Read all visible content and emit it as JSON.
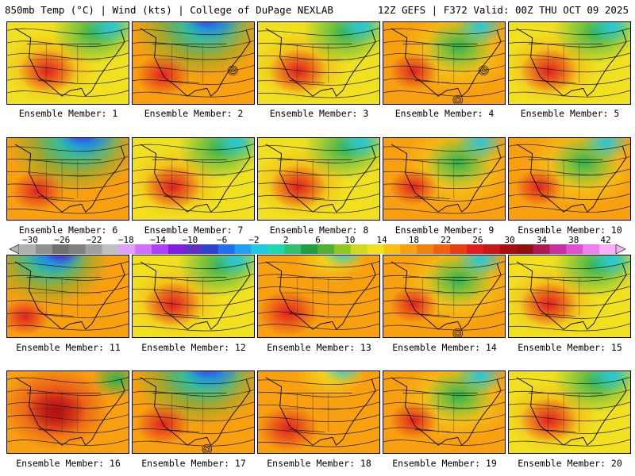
{
  "header": {
    "title": "850mb Temp (°C) | Wind (kts) | College of DuPage NEXLAB",
    "run_info": "12Z GEFS | F372 Valid: 00Z THU OCT 09 2025"
  },
  "panels": [
    {
      "label": "Ensemble Member: 1",
      "scheme": "warmwest",
      "lows": []
    },
    {
      "label": "Ensemble Member: 2",
      "scheme": "coldnorth",
      "lows": [
        "se"
      ]
    },
    {
      "label": "Ensemble Member: 3",
      "scheme": "warmwest",
      "lows": []
    },
    {
      "label": "Ensemble Member: 4",
      "scheme": "mild",
      "lows": [
        "se",
        "gulf"
      ]
    },
    {
      "label": "Ensemble Member: 5",
      "scheme": "warmwest",
      "lows": []
    },
    {
      "label": "Ensemble Member: 6",
      "scheme": "coldnorth",
      "lows": []
    },
    {
      "label": "Ensemble Member: 7",
      "scheme": "warmwest",
      "lows": []
    },
    {
      "label": "Ensemble Member: 8",
      "scheme": "warmwest",
      "lows": []
    },
    {
      "label": "Ensemble Member: 9",
      "scheme": "mild",
      "lows": []
    },
    {
      "label": "Ensemble Member: 10",
      "scheme": "mild",
      "lows": []
    },
    {
      "label": "Ensemble Member: 11",
      "scheme": "coldnw",
      "lows": []
    },
    {
      "label": "Ensemble Member: 12",
      "scheme": "warmwest",
      "lows": []
    },
    {
      "label": "Ensemble Member: 13",
      "scheme": "warm",
      "lows": []
    },
    {
      "label": "Ensemble Member: 14",
      "scheme": "mild",
      "lows": [
        "gulf"
      ]
    },
    {
      "label": "Ensemble Member: 15",
      "scheme": "warmwest",
      "lows": []
    },
    {
      "label": "Ensemble Member: 16",
      "scheme": "hot",
      "lows": []
    },
    {
      "label": "Ensemble Member: 17",
      "scheme": "coldnorth",
      "lows": [
        "gulf"
      ]
    },
    {
      "label": "Ensemble Member: 18",
      "scheme": "warm",
      "lows": []
    },
    {
      "label": "Ensemble Member: 19",
      "scheme": "mild",
      "lows": []
    },
    {
      "label": "Ensemble Member: 20",
      "scheme": "warmwest",
      "lows": []
    }
  ],
  "colorbar": {
    "ticks": [
      "−30",
      "−26",
      "−22",
      "−18",
      "−14",
      "−10",
      "−6",
      "−2",
      "2",
      "6",
      "10",
      "14",
      "18",
      "22",
      "26",
      "30",
      "34",
      "38",
      "42"
    ],
    "colors": [
      "#b0b0b0",
      "#909090",
      "#707070",
      "#808080",
      "#a0a0a0",
      "#c0c0c0",
      "#e0a0ff",
      "#d070ff",
      "#b040ff",
      "#8020e0",
      "#6030c0",
      "#3040d0",
      "#2070f0",
      "#20a0f0",
      "#20c8e0",
      "#20d8b0",
      "#30c070",
      "#20a040",
      "#50b030",
      "#90c820",
      "#d0d820",
      "#f0e020",
      "#f8c010",
      "#f8a010",
      "#f08010",
      "#f06010",
      "#e84010",
      "#e02020",
      "#c81818",
      "#a81010",
      "#901010",
      "#b01850",
      "#c830a0",
      "#e050d0",
      "#f080f0",
      "#f8b0f8"
    ]
  },
  "colors": {
    "cold_purple": "#6020d0",
    "cold_blue": "#2060f0",
    "cool_cyan": "#20c8e0",
    "cool_green": "#30b050",
    "mild_yellow": "#f0e020",
    "warm_orange": "#f8a010",
    "hot_red": "#e02020",
    "hot_darkred": "#b01010"
  }
}
